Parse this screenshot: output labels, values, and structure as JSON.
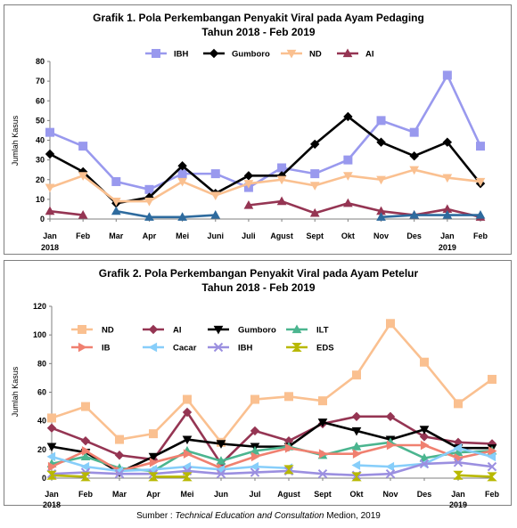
{
  "chart_data": [
    {
      "type": "line",
      "title": "Grafik 1. Pola Perkembangan Penyakit Viral pada Ayam Pedaging",
      "subtitle": "Tahun 2018 - Feb 2019",
      "ylabel": "Jumlah Kasus",
      "ylim": [
        0,
        80
      ],
      "yticks": [
        0,
        10,
        20,
        30,
        40,
        50,
        60,
        70,
        80
      ],
      "categories": [
        "Jan",
        "Feb",
        "Mar",
        "Apr",
        "Mei",
        "Juni",
        "Juli",
        "Agust",
        "Sept",
        "Okt",
        "Nov",
        "Des",
        "Jan",
        "Feb"
      ],
      "year_labels": [
        {
          "index": 0,
          "text": "2018"
        },
        {
          "index": 12,
          "text": "2019"
        }
      ],
      "legend_position": "top",
      "grid": false,
      "series": [
        {
          "name": "IBH",
          "color": "#9999ee",
          "marker": "square",
          "values": [
            44,
            37,
            19,
            15,
            23,
            23,
            16,
            26,
            23,
            30,
            50,
            44,
            73,
            37
          ]
        },
        {
          "name": "Gumboro",
          "color": "#000000",
          "marker": "diamond",
          "values": [
            33,
            24,
            8,
            11,
            27,
            13,
            22,
            22,
            38,
            52,
            39,
            32,
            39,
            18
          ]
        },
        {
          "name": "ND",
          "color": "#fac090",
          "marker": "triangle-down",
          "values": [
            16,
            22,
            9,
            9,
            19,
            12,
            18,
            20,
            17,
            22,
            20,
            25,
            21,
            19
          ]
        },
        {
          "name": "AI",
          "color": "#953553",
          "marker": "triangle",
          "values": [
            4,
            2,
            null,
            null,
            null,
            null,
            7,
            9,
            3,
            8,
            4,
            2,
            5,
            1
          ]
        },
        {
          "name": "",
          "color": "#2e6b9e",
          "marker": "triangle",
          "values": [
            null,
            null,
            4,
            1,
            1,
            2,
            null,
            null,
            null,
            null,
            1,
            2,
            2,
            2
          ]
        }
      ]
    },
    {
      "type": "line",
      "title": "Grafik 2. Pola Perkembangan Penyakit Viral pada Ayam Petelur",
      "subtitle": "Tahun 2018 - Feb 2019",
      "ylabel": "Jumlah Kasus",
      "ylim": [
        0,
        120
      ],
      "yticks": [
        0,
        20,
        40,
        60,
        80,
        100,
        120
      ],
      "categories": [
        "Jan",
        "Feb",
        "Mar",
        "Apr",
        "Mei",
        "Jun",
        "Jul",
        "Agust",
        "Sept",
        "Okt",
        "Nov",
        "Des",
        "Jan",
        "Feb"
      ],
      "year_labels": [
        {
          "index": 0,
          "text": "2018"
        },
        {
          "index": 12,
          "text": "2019"
        }
      ],
      "legend_position": "top-left",
      "grid": false,
      "series": [
        {
          "name": "ND",
          "color": "#fac090",
          "marker": "square",
          "values": [
            42,
            50,
            27,
            31,
            55,
            25,
            55,
            57,
            54,
            72,
            108,
            81,
            52,
            69
          ]
        },
        {
          "name": "AI",
          "color": "#953553",
          "marker": "diamond",
          "values": [
            35,
            26,
            16,
            13,
            46,
            10,
            33,
            26,
            38,
            43,
            43,
            29,
            25,
            24
          ]
        },
        {
          "name": "Gumboro",
          "color": "#000000",
          "marker": "triangle-down",
          "values": [
            22,
            18,
            4,
            15,
            27,
            24,
            22,
            22,
            39,
            33,
            27,
            34,
            21,
            21
          ]
        },
        {
          "name": "ILT",
          "color": "#4bb58f",
          "marker": "triangle",
          "values": [
            10,
            15,
            7,
            5,
            19,
            12,
            19,
            22,
            16,
            22,
            25,
            14,
            18,
            19
          ]
        },
        {
          "name": "IB",
          "color": "#f08070",
          "marker": "triangle-right",
          "values": [
            8,
            19,
            5,
            11,
            17,
            7,
            15,
            21,
            17,
            17,
            23,
            23,
            14,
            19
          ]
        },
        {
          "name": "Cacar",
          "color": "#87cefa",
          "marker": "triangle-left",
          "values": [
            15,
            8,
            5,
            6,
            8,
            6,
            8,
            7,
            null,
            9,
            8,
            10,
            21,
            15
          ]
        },
        {
          "name": "IBH",
          "color": "#9b8fe0",
          "marker": "x",
          "values": [
            3,
            4,
            3,
            3,
            5,
            3,
            4,
            5,
            3,
            2,
            3,
            10,
            11,
            8
          ]
        },
        {
          "name": "EDS",
          "color": "#b8b800",
          "marker": "hourglass",
          "values": [
            2,
            1,
            null,
            1,
            1,
            null,
            null,
            6,
            null,
            1,
            null,
            null,
            2,
            1
          ]
        }
      ]
    }
  ],
  "source": {
    "prefix": "Sumber : ",
    "italic": "Technical Education and Consultation",
    "suffix": " Medion, 2019"
  }
}
